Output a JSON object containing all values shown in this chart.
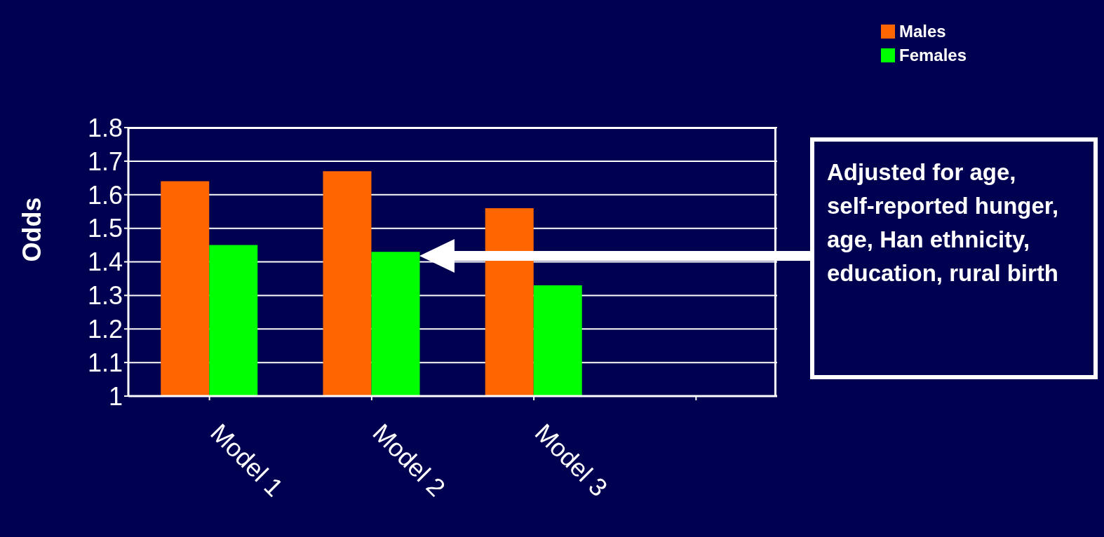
{
  "chart_data": {
    "type": "bar",
    "ylabel": "Odds",
    "categories": [
      "Model 1",
      "Model 2",
      "Model 3",
      null
    ],
    "series": [
      {
        "name": "Males",
        "color": "#ff6600",
        "values": [
          1.64,
          1.67,
          1.56,
          null
        ]
      },
      {
        "name": "Females",
        "color": "#00ff00",
        "values": [
          1.45,
          1.43,
          1.33,
          null
        ]
      }
    ],
    "ylim": [
      1,
      1.8
    ],
    "yticks": [
      1,
      1.1,
      1.2,
      1.3,
      1.4,
      1.5,
      1.6,
      1.7,
      1.8
    ],
    "grid": "y",
    "legend": "top right",
    "annotations": [
      "Adjusted for age, self-reported hunger, age, Han ethnicity, education, rural birth"
    ]
  }
}
